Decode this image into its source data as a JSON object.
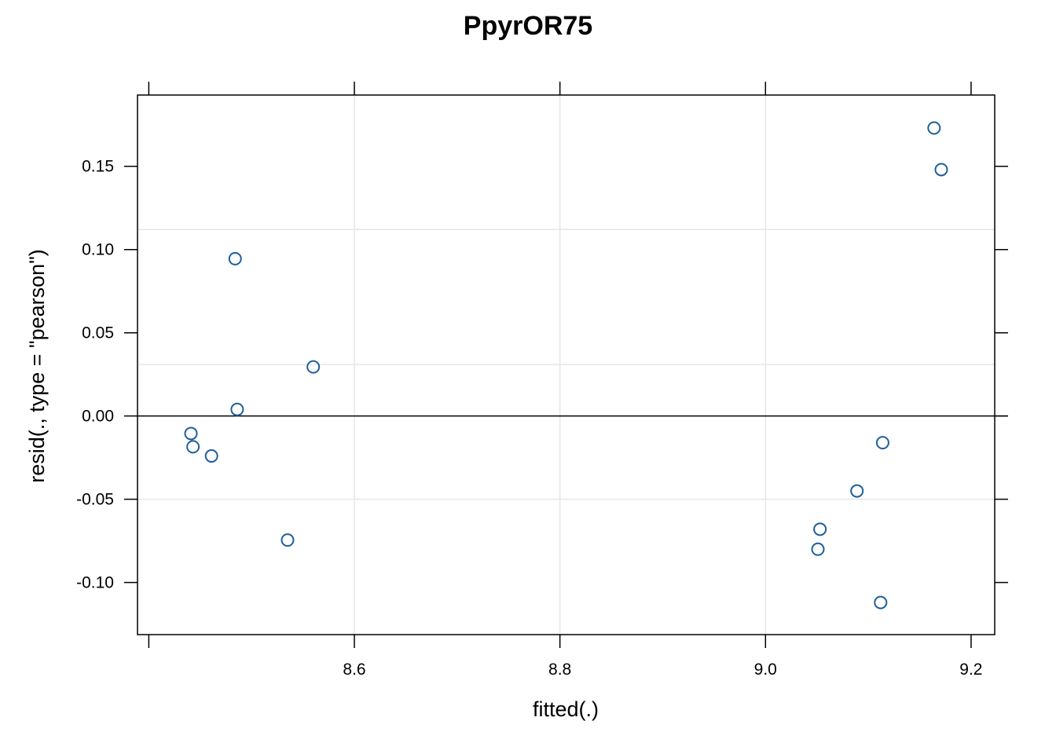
{
  "chart_data": {
    "type": "scatter",
    "title": "PpyrOR75",
    "xlabel": "fitted(.)",
    "ylabel": "resid(., type = \"pearson\")",
    "xlim": [
      8.389,
      9.223
    ],
    "ylim": [
      -0.1313,
      0.1928
    ],
    "x_ticks": [
      {
        "value": 8.6,
        "label": "8.6"
      },
      {
        "value": 8.8,
        "label": "8.8"
      },
      {
        "value": 9.0,
        "label": "9.0"
      },
      {
        "value": 9.2,
        "label": "9.2"
      }
    ],
    "x_ticks_unlabeled": [
      8.4
    ],
    "y_ticks": [
      {
        "value": -0.1,
        "label": "-0.10"
      },
      {
        "value": -0.05,
        "label": "-0.05"
      },
      {
        "value": 0.0,
        "label": "0.00"
      },
      {
        "value": 0.05,
        "label": "0.05"
      },
      {
        "value": 0.1,
        "label": "0.10"
      },
      {
        "value": 0.15,
        "label": "0.15"
      }
    ],
    "grid": {
      "vertical": [
        8.6,
        8.8,
        9.0
      ],
      "horizontal": [
        -0.05,
        0.031,
        0.112
      ]
    },
    "reference_line": 0.0,
    "colors": {
      "points": "#1f5f9a",
      "grid": "#e6e6e6",
      "reference": "#000000"
    },
    "points": [
      {
        "x": 8.441,
        "y": -0.0105
      },
      {
        "x": 8.443,
        "y": -0.0185
      },
      {
        "x": 8.461,
        "y": -0.024
      },
      {
        "x": 8.484,
        "y": 0.0945
      },
      {
        "x": 8.486,
        "y": 0.004
      },
      {
        "x": 8.535,
        "y": -0.0745
      },
      {
        "x": 8.56,
        "y": 0.0295
      },
      {
        "x": 9.051,
        "y": -0.08
      },
      {
        "x": 9.053,
        "y": -0.068
      },
      {
        "x": 9.089,
        "y": -0.045
      },
      {
        "x": 9.112,
        "y": -0.112
      },
      {
        "x": 9.114,
        "y": -0.016
      },
      {
        "x": 9.164,
        "y": 0.173
      },
      {
        "x": 9.171,
        "y": 0.148
      }
    ]
  }
}
